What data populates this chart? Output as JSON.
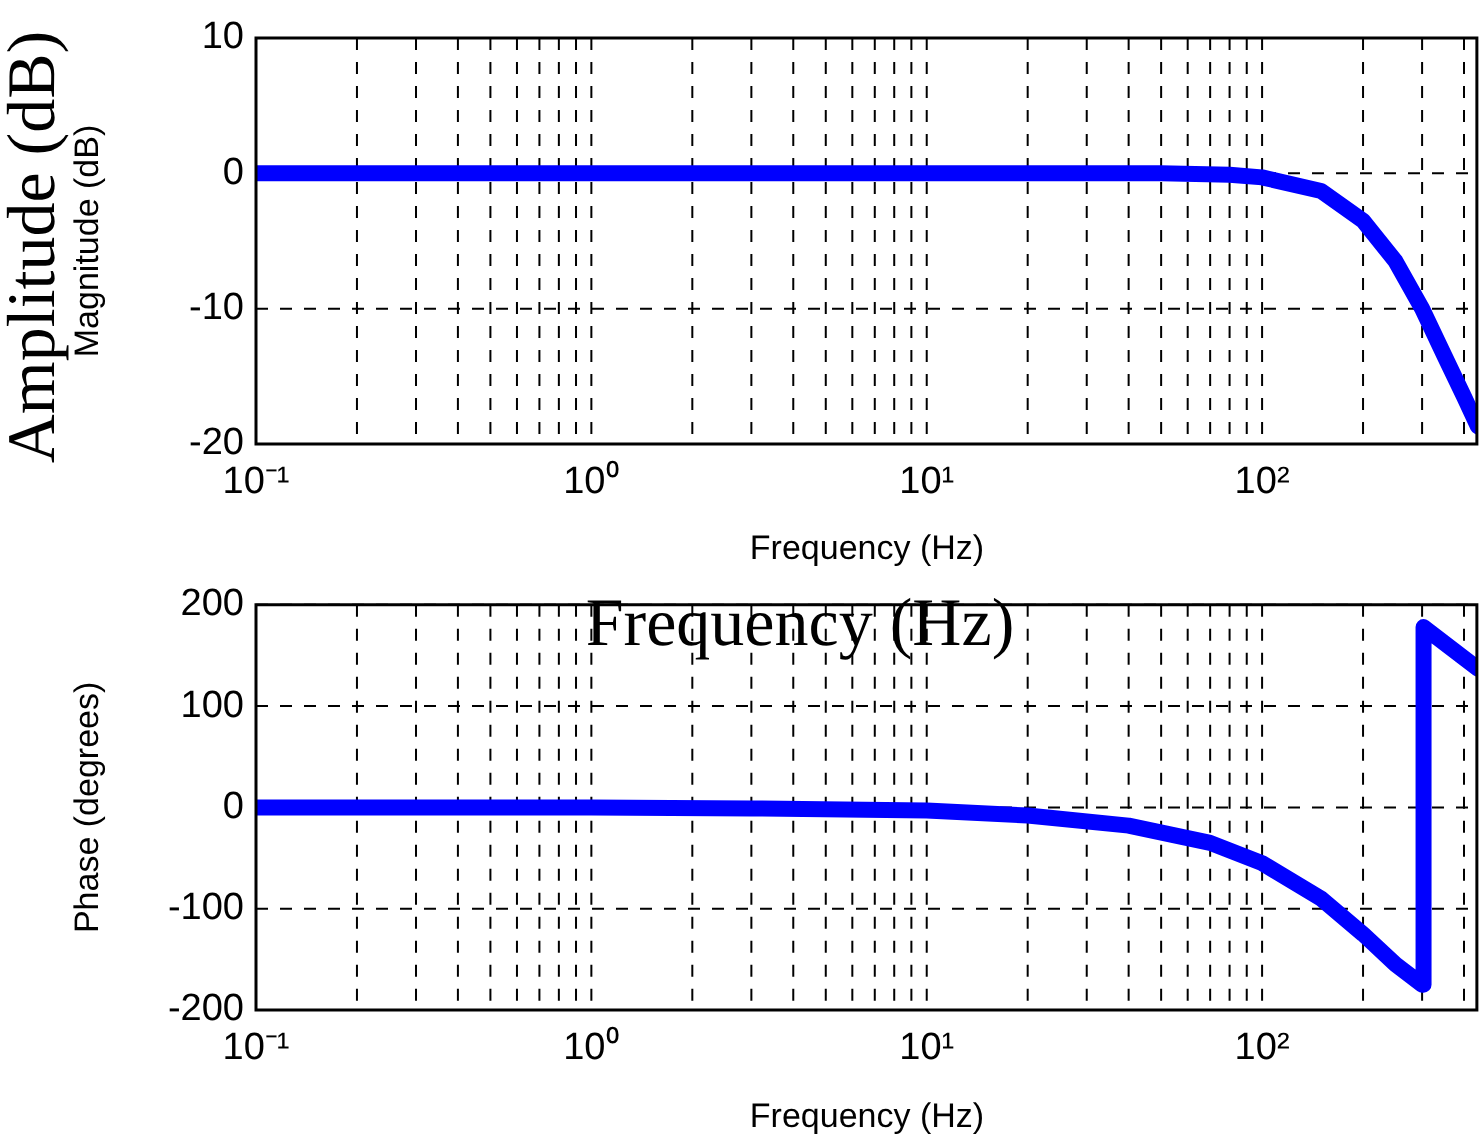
{
  "chart_data": [
    {
      "type": "line",
      "xlabel": "Frequency (Hz)",
      "ylabel": "Magnitude (dB)",
      "annotations": [
        "Amplitude (dB)"
      ],
      "log": "x",
      "grid": true,
      "legend": false,
      "marker": "none",
      "line_style": "solid",
      "x": [
        0.1,
        1,
        10,
        50,
        80,
        100,
        150,
        200,
        250,
        300,
        350,
        400,
        440
      ],
      "series": [
        {
          "color": "#0000ff",
          "values": [
            0,
            0,
            0,
            0,
            -0.1,
            -0.3,
            -1.3,
            -3.5,
            -6.5,
            -10,
            -13.5,
            -16.5,
            -18.7
          ]
        }
      ],
      "xlim": [
        0.1,
        440
      ],
      "ylim": [
        -20,
        10
      ],
      "yticks": [
        -20,
        -10,
        0,
        10
      ],
      "xticks": [
        {
          "value": 0.1,
          "label": "10⁻¹"
        },
        {
          "value": 0.2,
          "label": null
        },
        {
          "value": 0.3,
          "label": null
        },
        {
          "value": 0.4,
          "label": null
        },
        {
          "value": 0.5,
          "label": null
        },
        {
          "value": 0.6,
          "label": null
        },
        {
          "value": 0.7,
          "label": null
        },
        {
          "value": 0.8,
          "label": null
        },
        {
          "value": 0.9,
          "label": null
        },
        {
          "value": 1,
          "label": "10⁰"
        },
        {
          "value": 2,
          "label": null
        },
        {
          "value": 3,
          "label": null
        },
        {
          "value": 4,
          "label": null
        },
        {
          "value": 5,
          "label": null
        },
        {
          "value": 6,
          "label": null
        },
        {
          "value": 7,
          "label": null
        },
        {
          "value": 8,
          "label": null
        },
        {
          "value": 9,
          "label": null
        },
        {
          "value": 10,
          "label": "10¹"
        },
        {
          "value": 20,
          "label": null
        },
        {
          "value": 30,
          "label": null
        },
        {
          "value": 40,
          "label": null
        },
        {
          "value": 50,
          "label": null
        },
        {
          "value": 60,
          "label": null
        },
        {
          "value": 70,
          "label": null
        },
        {
          "value": 80,
          "label": null
        },
        {
          "value": 90,
          "label": null
        },
        {
          "value": 100,
          "label": "10²"
        },
        {
          "value": 200,
          "label": null
        },
        {
          "value": 300,
          "label": null
        },
        {
          "value": 400,
          "label": null
        }
      ]
    },
    {
      "type": "line",
      "xlabel": "Frequency (Hz)",
      "ylabel": "Phase (degrees)",
      "annotations": [
        "Frequency (Hz)"
      ],
      "log": "x",
      "grid": true,
      "legend": false,
      "marker": "none",
      "line_style": "solid",
      "x": [
        0.1,
        1,
        3,
        10,
        20,
        40,
        70,
        100,
        150,
        200,
        250,
        300,
        303,
        440
      ],
      "series": [
        {
          "color": "#0000ff",
          "values": [
            0,
            0,
            -1,
            -3,
            -8,
            -18,
            -35,
            -55,
            -90,
            -125,
            -155,
            -175,
            178,
            137
          ]
        }
      ],
      "xlim": [
        0.1,
        440
      ],
      "ylim": [
        -200,
        200
      ],
      "yticks": [
        -200,
        -100,
        0,
        100,
        200
      ],
      "xticks": [
        {
          "value": 0.1,
          "label": "10⁻¹"
        },
        {
          "value": 0.2,
          "label": null
        },
        {
          "value": 0.3,
          "label": null
        },
        {
          "value": 0.4,
          "label": null
        },
        {
          "value": 0.5,
          "label": null
        },
        {
          "value": 0.6,
          "label": null
        },
        {
          "value": 0.7,
          "label": null
        },
        {
          "value": 0.8,
          "label": null
        },
        {
          "value": 0.9,
          "label": null
        },
        {
          "value": 1,
          "label": "10⁰"
        },
        {
          "value": 2,
          "label": null
        },
        {
          "value": 3,
          "label": null
        },
        {
          "value": 4,
          "label": null
        },
        {
          "value": 5,
          "label": null
        },
        {
          "value": 6,
          "label": null
        },
        {
          "value": 7,
          "label": null
        },
        {
          "value": 8,
          "label": null
        },
        {
          "value": 9,
          "label": null
        },
        {
          "value": 10,
          "label": "10¹"
        },
        {
          "value": 20,
          "label": null
        },
        {
          "value": 30,
          "label": null
        },
        {
          "value": 40,
          "label": null
        },
        {
          "value": 50,
          "label": null
        },
        {
          "value": 60,
          "label": null
        },
        {
          "value": 70,
          "label": null
        },
        {
          "value": 80,
          "label": null
        },
        {
          "value": 90,
          "label": null
        },
        {
          "value": 100,
          "label": "10²"
        },
        {
          "value": 200,
          "label": null
        },
        {
          "value": 300,
          "label": null
        },
        {
          "value": 400,
          "label": null
        }
      ]
    }
  ]
}
